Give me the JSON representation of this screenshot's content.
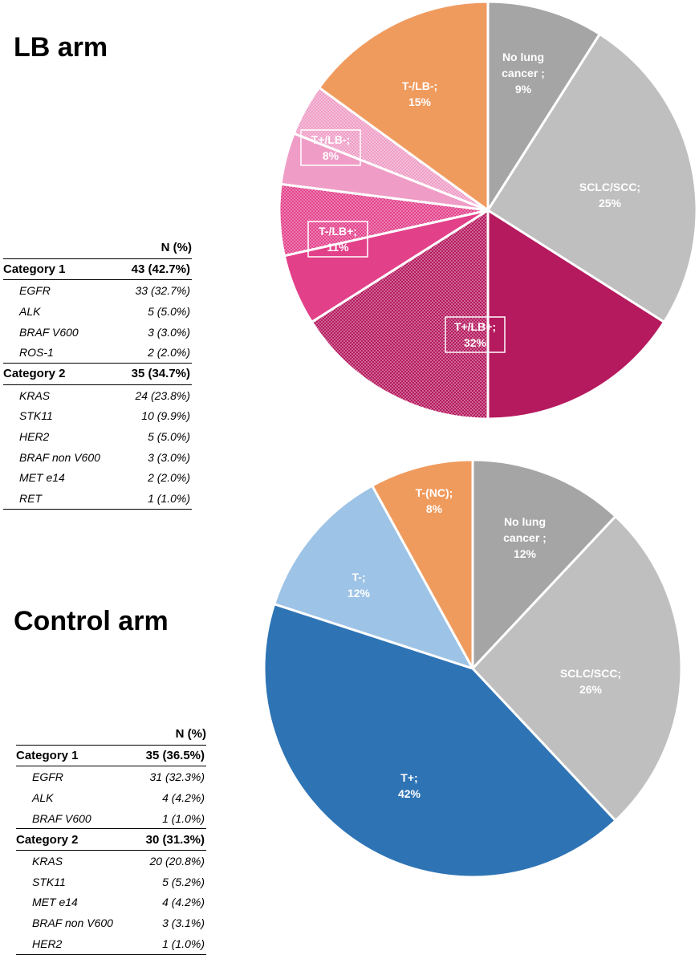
{
  "lb_arm": {
    "title": "LB arm",
    "table": {
      "header": "N (%)",
      "groups": [
        {
          "name": "Category 1",
          "value": "43 (42.7%)",
          "rows": [
            {
              "gene": "EGFR",
              "value": "33 (32.7%)"
            },
            {
              "gene": "ALK",
              "value": "5 (5.0%)"
            },
            {
              "gene": "BRAF V600",
              "value": "3 (3.0%)"
            },
            {
              "gene": "ROS-1",
              "value": "2 (2.0%)"
            }
          ]
        },
        {
          "name": "Category 2",
          "value": "35 (34.7%)",
          "rows": [
            {
              "gene": "KRAS",
              "value": "24 (23.8%)"
            },
            {
              "gene": "STK11",
              "value": "10 (9.9%)"
            },
            {
              "gene": "HER2",
              "value": "5 (5.0%)"
            },
            {
              "gene": "BRAF non V600",
              "value": "3 (3.0%)"
            },
            {
              "gene": "MET e14",
              "value": "2 (2.0%)"
            },
            {
              "gene": "RET",
              "value": "1 (1.0%)"
            }
          ]
        }
      ]
    }
  },
  "control_arm": {
    "title": "Control arm",
    "table": {
      "header": "N (%)",
      "groups": [
        {
          "name": "Category 1",
          "value": "35 (36.5%)",
          "rows": [
            {
              "gene": "EGFR",
              "value": "31 (32.3%)"
            },
            {
              "gene": "ALK",
              "value": "4 (4.2%)"
            },
            {
              "gene": "BRAF V600",
              "value": "1 (1.0%)"
            }
          ]
        },
        {
          "name": "Category 2",
          "value": "30 (31.3%)",
          "rows": [
            {
              "gene": "KRAS",
              "value": "20 (20.8%)"
            },
            {
              "gene": "STK11",
              "value": "5 (5.2%)"
            },
            {
              "gene": "MET e14",
              "value": "4 (4.2%)"
            },
            {
              "gene": "BRAF non V600",
              "value": "3 (3.1%)"
            },
            {
              "gene": "HER2",
              "value": "1 (1.0%)"
            }
          ]
        }
      ]
    }
  },
  "chart_data": [
    {
      "type": "pie",
      "title": "LB arm",
      "start": "top, clockwise",
      "slices": [
        {
          "label": [
            "No lung",
            "cancer ;",
            "9%"
          ],
          "value": 9,
          "color": "#a5a5a5",
          "pattern": "solid"
        },
        {
          "label": [
            "SCLC/SCC;",
            "25%"
          ],
          "value": 25,
          "color": "#bfbfbf",
          "pattern": "solid"
        },
        {
          "label": [
            "T+/LB+;",
            "32%"
          ],
          "value": 16,
          "color": "#b5195e",
          "pattern": "solid",
          "boxed": true,
          "label_value": 32
        },
        {
          "label": [],
          "value": 16,
          "color": "#b5195e",
          "pattern": "dotted"
        },
        {
          "label": [
            "T-/LB+;",
            "11%"
          ],
          "value": 5.5,
          "color": "#e3408a",
          "pattern": "solid",
          "boxed": true,
          "label_value": 11
        },
        {
          "label": [],
          "value": 5.5,
          "color": "#e3408a",
          "pattern": "dotted"
        },
        {
          "label": [
            "T+/LB-;",
            "8%"
          ],
          "value": 4,
          "color": "#ef9dc6",
          "pattern": "solid",
          "boxed": true,
          "label_value": 8
        },
        {
          "label": [],
          "value": 4,
          "color": "#ef9dc6",
          "pattern": "dotted"
        },
        {
          "label": [
            "T-/LB-;",
            "15%"
          ],
          "value": 15,
          "color": "#f09b5e",
          "pattern": "solid"
        }
      ]
    },
    {
      "type": "pie",
      "title": "Control arm",
      "start": "top, clockwise",
      "slices": [
        {
          "label": [
            "No lung",
            "cancer ;",
            "12%"
          ],
          "value": 12,
          "color": "#a5a5a5",
          "pattern": "solid"
        },
        {
          "label": [
            "SCLC/SCC;",
            "26%"
          ],
          "value": 26,
          "color": "#bfbfbf",
          "pattern": "solid"
        },
        {
          "label": [
            "T+;",
            "42%"
          ],
          "value": 42,
          "color": "#2e74b5",
          "pattern": "solid"
        },
        {
          "label": [
            "T-;",
            "12%"
          ],
          "value": 12,
          "color": "#9dc3e6",
          "pattern": "solid"
        },
        {
          "label": [
            "T-(NC);",
            "8%"
          ],
          "value": 8,
          "color": "#f09b5e",
          "pattern": "solid"
        }
      ]
    }
  ]
}
